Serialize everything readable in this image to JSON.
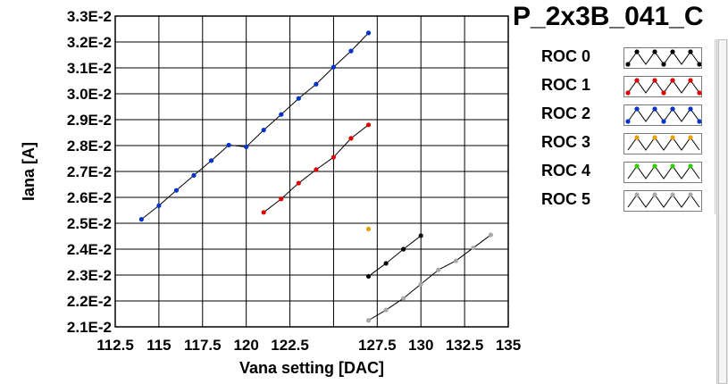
{
  "chart_data": {
    "type": "scatter",
    "title": "P_2x3B_041_C",
    "xlabel": "Vana setting [DAC]",
    "ylabel": "Iana [A]",
    "xlim": [
      112.5,
      135
    ],
    "ylim": [
      0.021,
      0.033
    ],
    "x_tick_labels": [
      "112.5",
      "115",
      "117.5",
      "120",
      "122.5",
      "",
      "127.5",
      "130",
      "132.5",
      "135"
    ],
    "y_tick_labels": [
      "2.1E-2",
      "2.2E-2",
      "2.3E-2",
      "2.4E-2",
      "2.5E-2",
      "2.6E-2",
      "2.7E-2",
      "2.8E-2",
      "2.9E-2",
      "3.0E-2",
      "3.1E-2",
      "3.2E-2",
      "3.3E-2"
    ],
    "grid": true,
    "legend": "right",
    "series": [
      {
        "name": "ROC 0",
        "color": "#000000",
        "points": [
          [
            127,
            0.02295
          ],
          [
            128,
            0.02345
          ],
          [
            129,
            0.024
          ],
          [
            130,
            0.02452
          ]
        ]
      },
      {
        "name": "ROC 1",
        "color": "#e00000",
        "points": [
          [
            121,
            0.02542
          ],
          [
            122,
            0.02594
          ],
          [
            123,
            0.02655
          ],
          [
            124,
            0.02707
          ],
          [
            125,
            0.02755
          ],
          [
            126,
            0.02828
          ],
          [
            127,
            0.0288
          ]
        ]
      },
      {
        "name": "ROC 2",
        "color": "#0033cc",
        "points": [
          [
            114,
            0.02515
          ],
          [
            115,
            0.02568
          ],
          [
            116,
            0.02627
          ],
          [
            117,
            0.02685
          ],
          [
            118,
            0.02742
          ],
          [
            119,
            0.02802
          ],
          [
            120,
            0.02795
          ],
          [
            121,
            0.0286
          ],
          [
            122,
            0.0292
          ],
          [
            123,
            0.02982
          ],
          [
            124,
            0.03037
          ],
          [
            125,
            0.03103
          ],
          [
            126,
            0.03165
          ],
          [
            127,
            0.03235
          ]
        ]
      },
      {
        "name": "ROC 3",
        "color": "#e8a000",
        "points": [
          [
            127,
            0.02478
          ]
        ]
      },
      {
        "name": "ROC 4",
        "color": "#33cc00",
        "points": []
      },
      {
        "name": "ROC 5",
        "color": "#a8a8a8",
        "points": [
          [
            127,
            0.02125
          ],
          [
            128,
            0.02165
          ],
          [
            129,
            0.0221
          ],
          [
            130,
            0.02265
          ],
          [
            131,
            0.0232
          ],
          [
            132,
            0.02355
          ],
          [
            133,
            0.02405
          ],
          [
            134,
            0.02455
          ]
        ]
      }
    ]
  }
}
